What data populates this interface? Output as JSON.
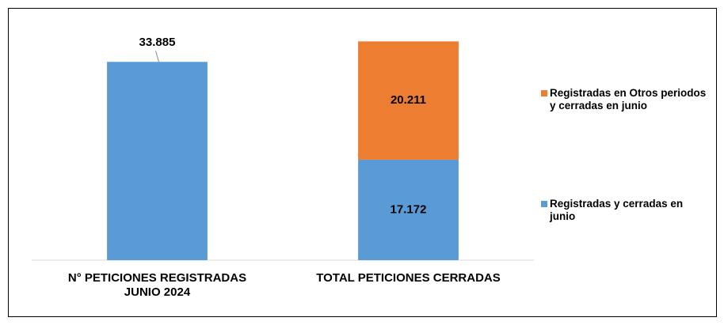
{
  "chart_data": {
    "type": "bar",
    "stacked": true,
    "categories": [
      "N° PETICIONES REGISTRADAS JUNIO 2024",
      "TOTAL PETICIONES CERRADAS"
    ],
    "series": [
      {
        "name": "Registradas y cerradas en junio",
        "color": "#5b9bd5",
        "values": [
          33885,
          17172
        ],
        "value_labels": [
          "33.885",
          "17.172"
        ]
      },
      {
        "name": "Registradas en Otros periodos y cerradas en junio",
        "color": "#ed7d31",
        "values": [
          null,
          20211
        ],
        "value_labels": [
          null,
          "20.211"
        ]
      }
    ],
    "ylim": [
      0,
      40000
    ],
    "legend": "right"
  }
}
